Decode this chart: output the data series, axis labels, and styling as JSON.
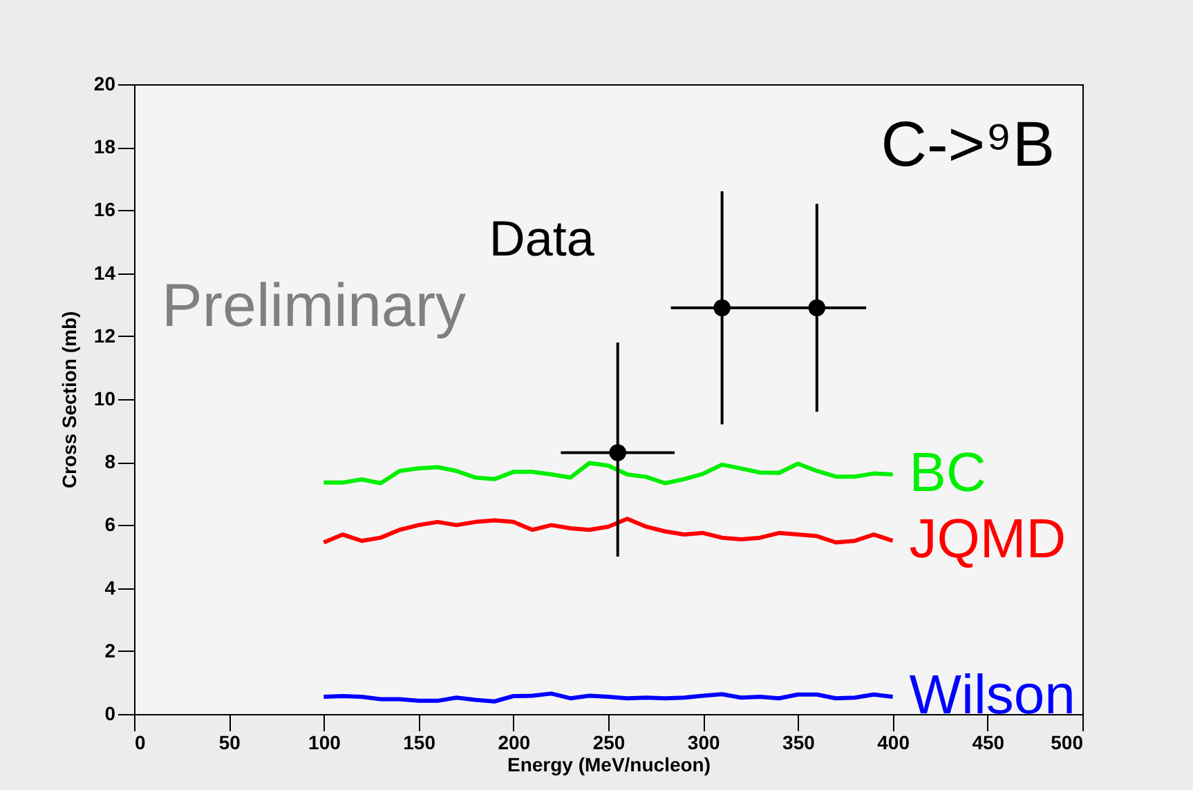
{
  "chart_data": {
    "type": "line",
    "xlabel": "Energy (MeV/nucleon)",
    "ylabel": "Cross Section (mb)",
    "annotations": [
      "C->⁹B",
      "Preliminary"
    ],
    "xlim": [
      0,
      500
    ],
    "xticks": [
      0,
      50,
      100,
      150,
      200,
      250,
      300,
      350,
      400,
      450,
      500
    ],
    "ylim": [
      0,
      20
    ],
    "yticks": [
      0,
      2,
      4,
      6,
      8,
      10,
      12,
      14,
      16,
      18,
      20
    ],
    "grid": false,
    "legend": false,
    "line_style": "solid",
    "x": [
      100,
      110,
      120,
      130,
      140,
      150,
      160,
      170,
      180,
      190,
      200,
      210,
      220,
      230,
      240,
      250,
      260,
      270,
      280,
      290,
      300,
      310,
      320,
      330,
      340,
      350,
      360,
      370,
      380,
      390,
      400
    ],
    "series": [
      {
        "name": "BC",
        "color": "#00ee00",
        "values": [
          7.35,
          7.35,
          7.45,
          7.33,
          7.72,
          7.8,
          7.84,
          7.72,
          7.51,
          7.46,
          7.69,
          7.69,
          7.61,
          7.51,
          7.97,
          7.89,
          7.61,
          7.53,
          7.33,
          7.46,
          7.63,
          7.92,
          7.8,
          7.67,
          7.66,
          7.95,
          7.72,
          7.54,
          7.54,
          7.64,
          7.61
        ]
      },
      {
        "name": "JQMD",
        "color": "#ff0000",
        "values": [
          5.45,
          5.7,
          5.5,
          5.6,
          5.85,
          6.0,
          6.1,
          6.0,
          6.1,
          6.15,
          6.1,
          5.85,
          6.0,
          5.9,
          5.85,
          5.95,
          6.2,
          5.95,
          5.8,
          5.7,
          5.75,
          5.6,
          5.55,
          5.6,
          5.75,
          5.7,
          5.65,
          5.45,
          5.5,
          5.7,
          5.5
        ]
      },
      {
        "name": "Wilson",
        "color": "#0000ff",
        "values": [
          0.55,
          0.57,
          0.55,
          0.47,
          0.47,
          0.42,
          0.42,
          0.52,
          0.45,
          0.4,
          0.57,
          0.58,
          0.65,
          0.5,
          0.58,
          0.55,
          0.5,
          0.52,
          0.5,
          0.52,
          0.58,
          0.63,
          0.52,
          0.55,
          0.5,
          0.62,
          0.62,
          0.5,
          0.52,
          0.62,
          0.55
        ]
      },
      {
        "name": "Data",
        "type": "scatter",
        "marker": "circle",
        "color": "#000000",
        "x": [
          255,
          310,
          360
        ],
        "values": [
          8.3,
          12.9,
          12.9
        ],
        "errors": [
          [
            5.0,
            11.8
          ],
          [
            9.2,
            16.6
          ],
          [
            9.6,
            16.2
          ]
        ],
        "xerrors": [
          [
            225,
            285
          ],
          [
            283,
            336
          ],
          [
            336,
            386
          ]
        ]
      }
    ]
  }
}
